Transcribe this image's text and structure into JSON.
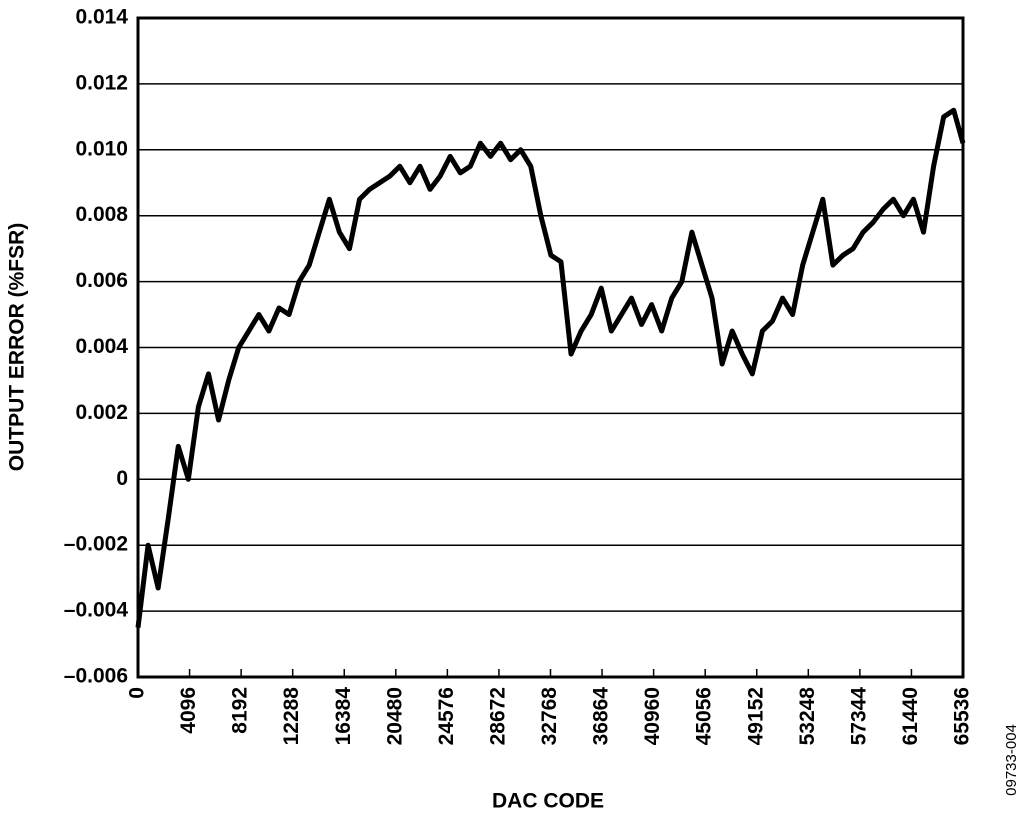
{
  "chart_data": {
    "type": "line",
    "xlabel": "DAC CODE",
    "ylabel": "OUTPUT ERROR (%FSR)",
    "annotation": "09733-004",
    "color": "#000000",
    "grid": true,
    "x": [
      0,
      800,
      1600,
      2400,
      3200,
      4000,
      4800,
      5600,
      6400,
      7200,
      8000,
      8800,
      9600,
      10400,
      11200,
      12000,
      12800,
      13600,
      14400,
      15200,
      16000,
      16800,
      17600,
      18400,
      19200,
      20000,
      20800,
      21600,
      22400,
      23200,
      24000,
      24800,
      25600,
      26400,
      27200,
      28000,
      28800,
      29600,
      30400,
      31200,
      32000,
      32800,
      33600,
      34400,
      35200,
      36000,
      36800,
      37600,
      38400,
      39200,
      40000,
      40800,
      41600,
      42400,
      43200,
      44000,
      44800,
      45600,
      46400,
      47200,
      48000,
      48800,
      49600,
      50400,
      51200,
      52000,
      52800,
      53600,
      54400,
      55200,
      56000,
      56800,
      57600,
      58400,
      59200,
      60000,
      60800,
      61600,
      62400,
      63200,
      64000,
      64800,
      65536
    ],
    "values": [
      -0.0045,
      -0.002,
      -0.0033,
      -0.0012,
      0.001,
      0.0,
      0.0022,
      0.0032,
      0.0018,
      0.003,
      0.004,
      0.0045,
      0.005,
      0.0045,
      0.0052,
      0.005,
      0.006,
      0.0065,
      0.0075,
      0.0085,
      0.0075,
      0.007,
      0.0085,
      0.0088,
      0.009,
      0.0092,
      0.0095,
      0.009,
      0.0095,
      0.0088,
      0.0092,
      0.0098,
      0.0093,
      0.0095,
      0.0102,
      0.0098,
      0.0102,
      0.0097,
      0.01,
      0.0095,
      0.008,
      0.0068,
      0.0066,
      0.0038,
      0.0045,
      0.005,
      0.0058,
      0.0045,
      0.005,
      0.0055,
      0.0047,
      0.0053,
      0.0045,
      0.0055,
      0.006,
      0.0075,
      0.0065,
      0.0055,
      0.0035,
      0.0045,
      0.0038,
      0.0032,
      0.0045,
      0.0048,
      0.0055,
      0.005,
      0.0065,
      0.0075,
      0.0085,
      0.0065,
      0.0068,
      0.007,
      0.0075,
      0.0078,
      0.0082,
      0.0085,
      0.008,
      0.0085,
      0.0075,
      0.0095,
      0.011,
      0.0112,
      0.0102
    ],
    "xlim": [
      0,
      65536
    ],
    "xticks": [
      0,
      4096,
      8192,
      12288,
      16384,
      20480,
      24576,
      28672,
      32768,
      36864,
      40960,
      45056,
      49152,
      53248,
      57344,
      61440,
      65536
    ],
    "ylim": [
      -0.006,
      0.014
    ],
    "yticks": [
      {
        "value": -0.006,
        "label": "–0.006"
      },
      {
        "value": -0.004,
        "label": "–0.004"
      },
      {
        "value": -0.002,
        "label": "–0.002"
      },
      0,
      0.002,
      0.004,
      0.006,
      0.008,
      {
        "value": 0.01,
        "label": "0.010"
      },
      0.012,
      0.014
    ]
  }
}
